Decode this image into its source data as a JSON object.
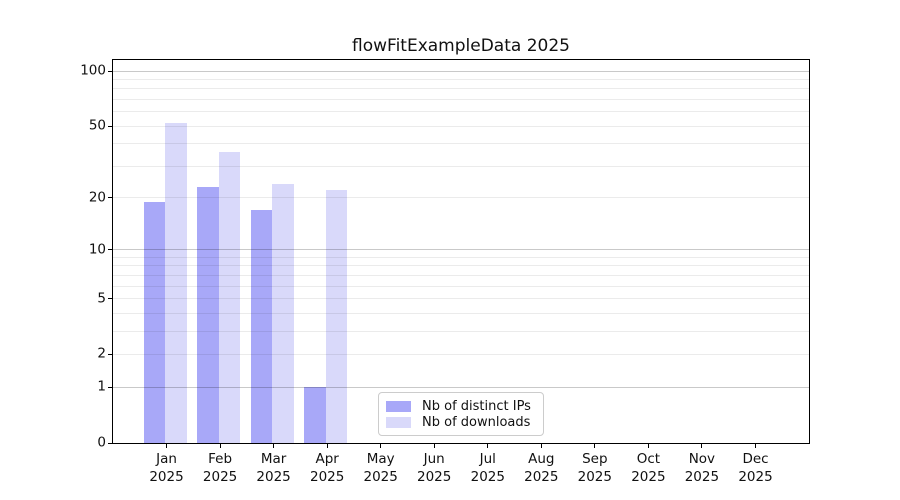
{
  "chart_data": {
    "type": "bar",
    "title": "flowFitExampleData 2025",
    "y_scale": "log(1+x)",
    "ylim": [
      0,
      115
    ],
    "grid": true,
    "legend_position": "lower center",
    "y_ticks": [
      0,
      1,
      2,
      5,
      10,
      20,
      50,
      100
    ],
    "y_gridlines_major": [
      1,
      10,
      100
    ],
    "y_gridlines_minor": [
      2,
      3,
      4,
      5,
      6,
      7,
      8,
      9,
      20,
      30,
      40,
      50,
      60,
      70,
      80,
      90
    ],
    "categories": [
      "Jan",
      "Feb",
      "Mar",
      "Apr",
      "May",
      "Jun",
      "Jul",
      "Aug",
      "Sep",
      "Oct",
      "Nov",
      "Dec"
    ],
    "x_tick_year": "2025",
    "series": [
      {
        "name": "Nb of distinct IPs",
        "color": "#a8a8f8",
        "values": [
          19,
          23,
          17,
          1,
          0,
          0,
          0,
          0,
          0,
          0,
          0,
          0
        ]
      },
      {
        "name": "Nb of downloads",
        "color": "#d9d9fa",
        "values": [
          52,
          36,
          24,
          22,
          0,
          0,
          0,
          0,
          0,
          0,
          0,
          0
        ]
      }
    ]
  },
  "colors": {
    "major_grid": "#c9c9c9",
    "minor_grid": "#ebebeb",
    "spine": "#000000",
    "text": "#111111",
    "legend_border": "#cccccc"
  }
}
